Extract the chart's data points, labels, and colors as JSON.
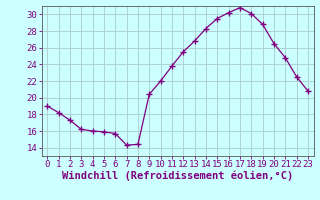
{
  "x": [
    0,
    1,
    2,
    3,
    4,
    5,
    6,
    7,
    8,
    9,
    10,
    11,
    12,
    13,
    14,
    15,
    16,
    17,
    18,
    19,
    20,
    21,
    22,
    23
  ],
  "y": [
    19.0,
    18.2,
    17.3,
    16.2,
    16.0,
    15.9,
    15.7,
    14.3,
    14.4,
    20.4,
    22.0,
    23.8,
    25.5,
    26.8,
    28.3,
    29.5,
    30.2,
    30.8,
    30.1,
    28.8,
    26.5,
    24.8,
    22.5,
    20.8
  ],
  "line_color": "#800080",
  "marker": "+",
  "marker_size": 4,
  "bg_color": "#ccffff",
  "grid_color": "#aacccc",
  "xlabel": "Windchill (Refroidissement éolien,°C)",
  "xlim": [
    -0.5,
    23.5
  ],
  "ylim": [
    13,
    31
  ],
  "yticks": [
    14,
    16,
    18,
    20,
    22,
    24,
    26,
    28,
    30
  ],
  "xticks": [
    0,
    1,
    2,
    3,
    4,
    5,
    6,
    7,
    8,
    9,
    10,
    11,
    12,
    13,
    14,
    15,
    16,
    17,
    18,
    19,
    20,
    21,
    22,
    23
  ],
  "spine_color": "#555555",
  "tick_color": "#800080",
  "label_color": "#800080",
  "tick_font_size": 6.5,
  "xlabel_font_size": 7.5
}
